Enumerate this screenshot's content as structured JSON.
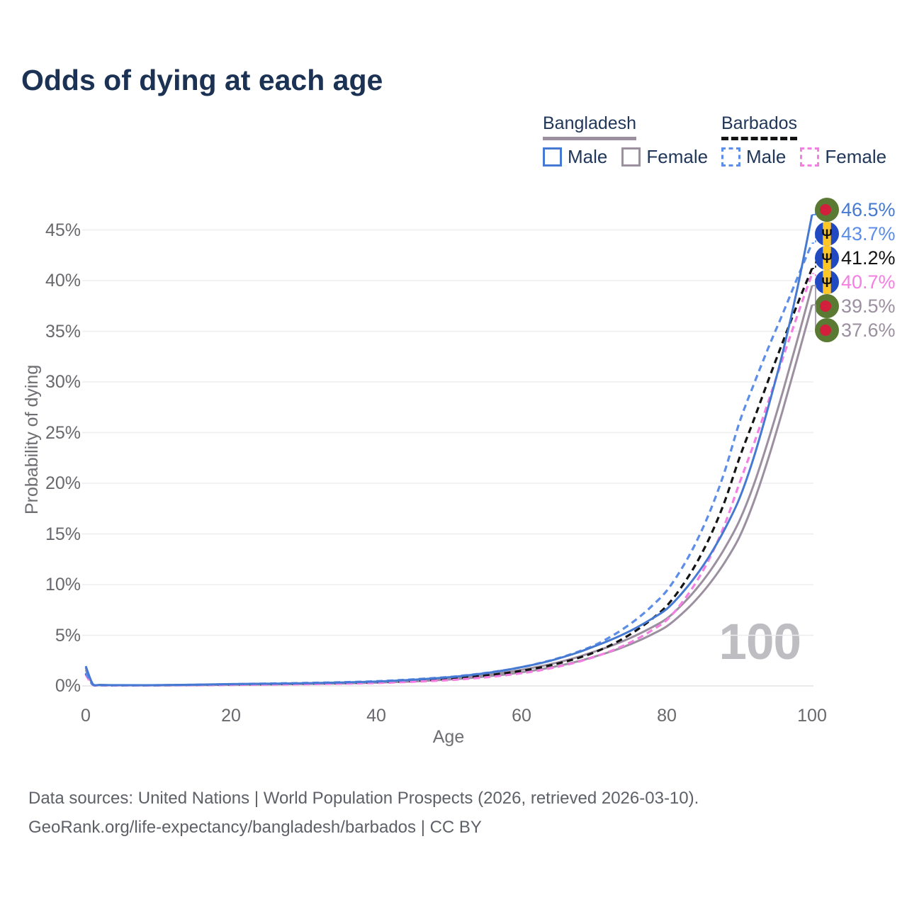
{
  "title": "Odds of dying at each age",
  "legend": {
    "groups": [
      {
        "country": "Bangladesh",
        "items": [
          {
            "label": "Male"
          },
          {
            "label": "Female"
          }
        ]
      },
      {
        "country": "Barbados",
        "items": [
          {
            "label": "Male"
          },
          {
            "label": "Female"
          }
        ]
      }
    ]
  },
  "watermark": "100",
  "footer": {
    "line1": "Data sources: United Nations | World Population Prospects (2026, retrieved 2026-03-10).",
    "line2": "GeoRank.org/life-expectancy/bangladesh/barbados | CC BY"
  },
  "colors": {
    "title_text": "#1c3254",
    "legend_text": "#21375a",
    "axis_text": "#68686d",
    "grid": "#ededf0",
    "watermark": "#bdbdc2",
    "footer_text": "#5d6167",
    "bangladesh_flag_green": "#5a7a33",
    "bangladesh_flag_red": "#d21f3c",
    "barbados_flag_blue": "#2149c1",
    "barbados_flag_yellow": "#ffc627"
  },
  "chart_data": {
    "type": "line",
    "title": "Odds of dying at each age",
    "xlabel": "Age",
    "ylabel": "Probability of dying",
    "xlim": [
      0,
      100
    ],
    "ylim_percent": [
      0,
      47
    ],
    "x_ticks": [
      0,
      20,
      40,
      60,
      80,
      100
    ],
    "y_tick_labels": [
      "0%",
      "5%",
      "10%",
      "15%",
      "20%",
      "25%",
      "30%",
      "35%",
      "40%",
      "45%"
    ],
    "grid": true,
    "legend_position": "top-right",
    "x": [
      0,
      1,
      2,
      5,
      10,
      15,
      20,
      25,
      30,
      35,
      40,
      45,
      50,
      52,
      54,
      56,
      58,
      60,
      62,
      64,
      66,
      68,
      70,
      72,
      74,
      76,
      78,
      80,
      82,
      84,
      86,
      88,
      90,
      92,
      94,
      96,
      98,
      100
    ],
    "series": [
      {
        "name": "Bangladesh Male",
        "country": "Bangladesh",
        "flag": "bangladesh",
        "style": "solid",
        "color": "#4579d2",
        "end_label": "46.5%",
        "values": [
          1.95,
          0.16,
          0.1,
          0.08,
          0.08,
          0.12,
          0.18,
          0.22,
          0.26,
          0.33,
          0.43,
          0.6,
          0.85,
          0.99,
          1.16,
          1.36,
          1.58,
          1.85,
          2.15,
          2.49,
          2.9,
          3.36,
          3.9,
          4.46,
          5.09,
          5.82,
          6.65,
          7.6,
          9.08,
          10.85,
          12.97,
          15.5,
          18.5,
          22.6,
          27.6,
          33.0,
          39.3,
          46.5
        ]
      },
      {
        "name": "Barbados Male",
        "country": "Barbados",
        "flag": "barbados",
        "style": "dashed",
        "color": "#5b8de9",
        "end_label": "43.7%",
        "values": [
          1.3,
          0.11,
          0.08,
          0.06,
          0.07,
          0.11,
          0.17,
          0.23,
          0.29,
          0.36,
          0.46,
          0.64,
          0.88,
          1.02,
          1.18,
          1.37,
          1.59,
          1.85,
          2.16,
          2.52,
          2.94,
          3.43,
          4.0,
          4.74,
          5.63,
          6.67,
          7.92,
          9.4,
          11.52,
          14.12,
          17.32,
          21.23,
          26.0,
          29.8,
          33.4,
          36.8,
          40.3,
          43.7
        ]
      },
      {
        "name": "Barbados",
        "country": "Barbados",
        "flag": "barbados",
        "style": "dashed",
        "color": "#141414",
        "end_label": "41.2%",
        "values": [
          1.2,
          0.1,
          0.07,
          0.05,
          0.06,
          0.09,
          0.13,
          0.17,
          0.22,
          0.28,
          0.37,
          0.51,
          0.71,
          0.82,
          0.95,
          1.1,
          1.28,
          1.49,
          1.74,
          2.04,
          2.39,
          2.8,
          3.3,
          3.93,
          4.68,
          5.57,
          6.63,
          7.9,
          9.74,
          12.01,
          14.8,
          18.25,
          22.5,
          26.3,
          30.2,
          34.0,
          37.7,
          41.2
        ]
      },
      {
        "name": "Barbados Female",
        "country": "Barbados",
        "flag": "barbados",
        "style": "dashed",
        "color": "#f57ee3",
        "end_label": "40.7%",
        "values": [
          1.1,
          0.09,
          0.06,
          0.04,
          0.05,
          0.07,
          0.1,
          0.13,
          0.17,
          0.22,
          0.29,
          0.41,
          0.57,
          0.67,
          0.78,
          0.91,
          1.07,
          1.25,
          1.47,
          1.74,
          2.05,
          2.42,
          2.85,
          3.36,
          3.96,
          4.67,
          5.51,
          6.5,
          8.14,
          10.19,
          12.75,
          15.97,
          20.0,
          23.9,
          28.1,
          32.4,
          36.6,
          40.7
        ]
      },
      {
        "name": "Bangladesh",
        "country": "Bangladesh",
        "flag": "bangladesh",
        "style": "solid",
        "color": "#9b8fa0",
        "end_label": "39.5%",
        "values": [
          1.8,
          0.14,
          0.09,
          0.07,
          0.07,
          0.1,
          0.15,
          0.19,
          0.23,
          0.29,
          0.38,
          0.52,
          0.74,
          0.86,
          1.0,
          1.17,
          1.36,
          1.59,
          1.85,
          2.15,
          2.5,
          2.91,
          3.38,
          3.87,
          4.43,
          5.07,
          5.8,
          6.64,
          7.95,
          9.51,
          11.38,
          13.62,
          16.3,
          19.9,
          24.3,
          29.1,
          34.2,
          39.5
        ]
      },
      {
        "name": "Bangladesh Female",
        "country": "Bangladesh",
        "flag": "bangladesh",
        "style": "solid",
        "color": "#9b8fa0",
        "end_label": "37.6%",
        "values": [
          1.6,
          0.12,
          0.08,
          0.06,
          0.06,
          0.08,
          0.12,
          0.15,
          0.19,
          0.24,
          0.32,
          0.44,
          0.63,
          0.73,
          0.85,
          0.99,
          1.15,
          1.34,
          1.56,
          1.82,
          2.12,
          2.47,
          2.88,
          3.32,
          3.83,
          4.42,
          5.1,
          5.88,
          7.06,
          8.48,
          10.18,
          12.22,
          14.7,
          18.2,
          22.5,
          27.3,
          32.4,
          37.6
        ]
      }
    ]
  }
}
